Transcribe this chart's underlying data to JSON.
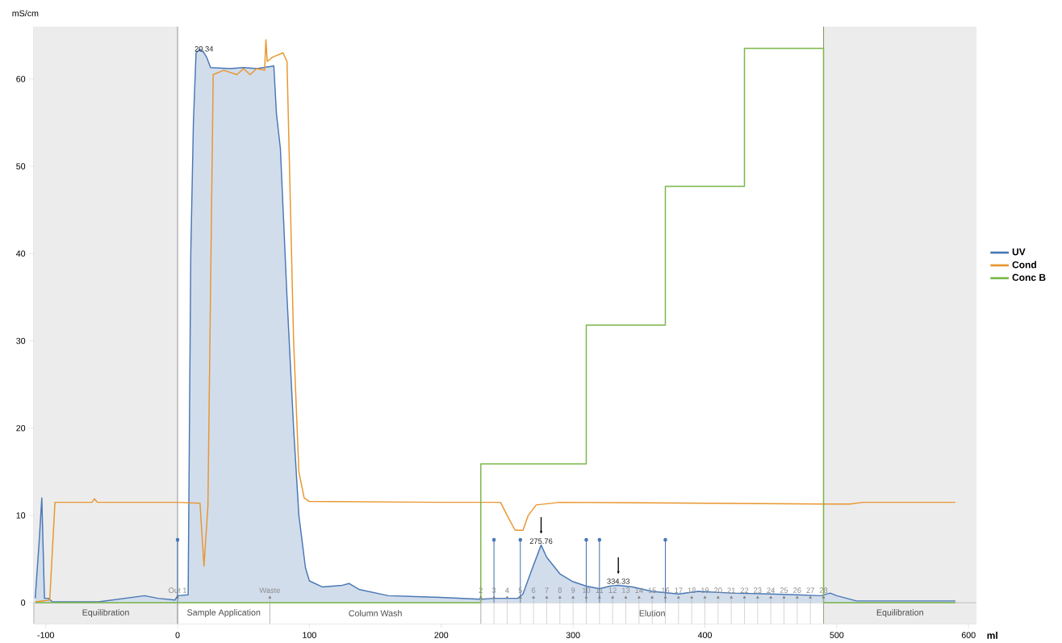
{
  "chart_data": {
    "type": "line",
    "xlabel": "ml",
    "ylabel": "mS/cm",
    "xlim": [
      -109,
      606
    ],
    "ylim": [
      -2.4,
      66
    ],
    "xticks": [
      -100,
      0,
      100,
      200,
      300,
      400,
      500,
      600
    ],
    "yticks": [
      0,
      10,
      20,
      30,
      40,
      50,
      60
    ],
    "legend": "right",
    "series": [
      {
        "name": "UV",
        "type": "area",
        "color": "#4a78b5",
        "x": [
          -108,
          -105,
          -103,
          -101,
          -98,
          -95,
          -60,
          -25,
          -15,
          -2,
          0,
          8,
          10,
          12,
          14,
          17,
          20,
          22,
          25,
          40,
          50,
          60,
          73,
          75,
          78,
          83,
          88,
          92,
          97,
          100,
          110,
          125,
          130,
          138,
          160,
          200,
          230,
          240,
          258,
          262,
          268,
          275.76,
          280,
          290,
          300,
          310,
          320,
          328,
          334.33,
          345,
          360,
          380,
          395,
          420,
          450,
          470,
          488,
          495,
          500,
          515,
          590
        ],
        "values": [
          0.5,
          7,
          12,
          0.5,
          0.5,
          0.1,
          0.1,
          0.8,
          0.5,
          0.3,
          0.8,
          0.9,
          40,
          55,
          63,
          63.4,
          63,
          62.5,
          61.3,
          61.2,
          61.3,
          61.2,
          61.5,
          56,
          52,
          35,
          20,
          10,
          4,
          2.5,
          1.8,
          2.0,
          2.2,
          1.5,
          0.8,
          0.6,
          0.4,
          0.5,
          0.5,
          1.0,
          3.5,
          6.6,
          5.2,
          3.3,
          2.4,
          1.9,
          1.6,
          1.9,
          2.0,
          1.8,
          1.3,
          1.0,
          1.3,
          1.1,
          1.0,
          0.9,
          0.8,
          1.1,
          0.8,
          0.2,
          0.2
        ]
      },
      {
        "name": "Cond",
        "color": "#e8962e",
        "x": [
          -108,
          -97,
          -93,
          -65,
          -63,
          -61,
          0,
          17,
          20,
          23,
          27,
          35,
          45,
          50,
          55,
          60,
          66,
          67,
          68,
          72,
          80,
          83,
          88,
          92,
          96,
          100,
          200,
          245,
          250,
          256,
          262,
          266,
          272,
          290,
          400,
          490,
          510,
          520,
          590
        ],
        "values": [
          0.1,
          0.3,
          11.5,
          11.5,
          11.9,
          11.5,
          11.5,
          11.4,
          4.2,
          11,
          60.5,
          61,
          60.5,
          61.2,
          60.5,
          61.2,
          61,
          64.5,
          62,
          62.5,
          63,
          62,
          30,
          15,
          12,
          11.6,
          11.5,
          11.5,
          10,
          8.3,
          8.3,
          10,
          11.2,
          11.5,
          11.4,
          11.3,
          11.3,
          11.5,
          11.5
        ]
      },
      {
        "name": "Conc B",
        "type": "step",
        "color": "#7ab648",
        "x": [
          -108,
          230,
          310,
          370,
          430,
          490,
          590
        ],
        "values": [
          0,
          15.9,
          31.8,
          47.7,
          63.5,
          0,
          0
        ]
      },
      {
        "type": "lollipop",
        "color": "#4a78b5",
        "x": [
          0,
          240,
          260,
          310,
          320,
          370
        ],
        "values": [
          7.2,
          7.2,
          7.2,
          7.2,
          7.2,
          7.2
        ]
      },
      {
        "type": "scatter",
        "marker": "triangle",
        "color": "#7f7f7f",
        "x": [
          0,
          70,
          230,
          240,
          250,
          260,
          270,
          280,
          290,
          300,
          310,
          320,
          330,
          340,
          350,
          360,
          370,
          380,
          390,
          400,
          410,
          420,
          430,
          440,
          450,
          460,
          470,
          480,
          490
        ],
        "values": [
          0.6,
          0.6,
          0.6,
          0.6,
          0.6,
          0.6,
          0.6,
          0.6,
          0.6,
          0.6,
          0.6,
          0.6,
          0.6,
          0.6,
          0.6,
          0.6,
          0.6,
          0.6,
          0.6,
          0.6,
          0.6,
          0.6,
          0.6,
          0.6,
          0.6,
          0.6,
          0.6,
          0.6,
          0.6
        ]
      }
    ],
    "bands": [
      {
        "axis": "x",
        "from": -109,
        "to": 0,
        "label": "Equilibration",
        "color": "#ececec"
      },
      {
        "axis": "x",
        "from": 0,
        "to": 70,
        "label": "Sample Application",
        "color": "#ffffff"
      },
      {
        "axis": "x",
        "from": 70,
        "to": 230,
        "label": "Column Wash",
        "color": "#ffffff"
      },
      {
        "axis": "x",
        "from": 230,
        "to": 490,
        "label": "Elution",
        "color": "#ffffff"
      },
      {
        "axis": "x",
        "from": 490,
        "to": 606,
        "label": "Equilibration",
        "color": "#ececec"
      }
    ],
    "ref_lines": [
      {
        "axis": "x",
        "value": 0,
        "color": "#9a9a9a"
      },
      {
        "axis": "x",
        "value": 490,
        "color": "#8c9a5e"
      }
    ],
    "annotations": [
      {
        "text": "20.34",
        "x": 20,
        "y": 63
      },
      {
        "text": "275.76",
        "x": 275.76,
        "y": 6.6
      },
      {
        "text": "334.33",
        "x": 334.33,
        "y": 2.0
      },
      {
        "text": "Out 1",
        "x": 0,
        "y": 0.6
      },
      {
        "text": "Waste",
        "x": 70,
        "y": 0.6
      },
      {
        "text": "2",
        "x": 230,
        "y": 0.6
      },
      {
        "text": "3",
        "x": 240,
        "y": 0.6
      },
      {
        "text": "4",
        "x": 250,
        "y": 0.6
      },
      {
        "text": "5",
        "x": 260,
        "y": 0.6
      },
      {
        "text": "6",
        "x": 270,
        "y": 0.6
      },
      {
        "text": "7",
        "x": 280,
        "y": 0.6
      },
      {
        "text": "8",
        "x": 290,
        "y": 0.6
      },
      {
        "text": "9",
        "x": 300,
        "y": 0.6
      },
      {
        "text": "10",
        "x": 310,
        "y": 0.6
      },
      {
        "text": "11",
        "x": 320,
        "y": 0.6
      },
      {
        "text": "12",
        "x": 330,
        "y": 0.6
      },
      {
        "text": "13",
        "x": 340,
        "y": 0.6
      },
      {
        "text": "14",
        "x": 350,
        "y": 0.6
      },
      {
        "text": "15",
        "x": 360,
        "y": 0.6
      },
      {
        "text": "16",
        "x": 370,
        "y": 0.6
      },
      {
        "text": "17",
        "x": 380,
        "y": 0.6
      },
      {
        "text": "18",
        "x": 390,
        "y": 0.6
      },
      {
        "text": "19",
        "x": 400,
        "y": 0.6
      },
      {
        "text": "20",
        "x": 410,
        "y": 0.6
      },
      {
        "text": "21",
        "x": 420,
        "y": 0.6
      },
      {
        "text": "22",
        "x": 430,
        "y": 0.6
      },
      {
        "text": "23",
        "x": 440,
        "y": 0.6
      },
      {
        "text": "24",
        "x": 450,
        "y": 0.6
      },
      {
        "text": "25",
        "x": 460,
        "y": 0.6
      },
      {
        "text": "26",
        "x": 470,
        "y": 0.6
      },
      {
        "text": "27",
        "x": 480,
        "y": 0.6
      },
      {
        "text": "28",
        "x": 490,
        "y": 0.6
      }
    ]
  }
}
